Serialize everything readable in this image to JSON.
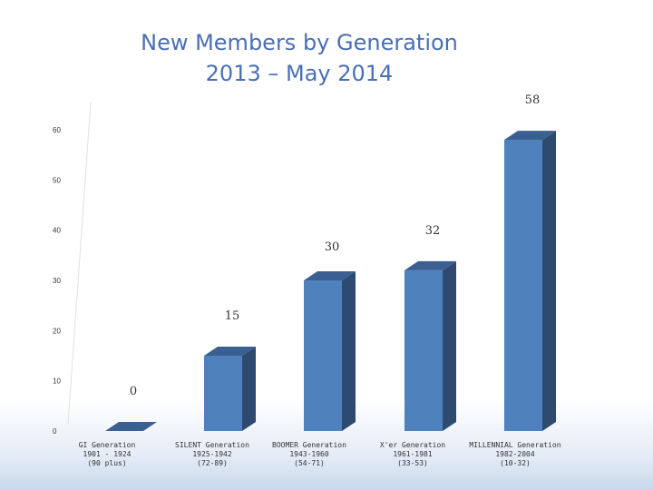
{
  "chart_title": {
    "line1": "New Members by Generation",
    "line2": "2013 – May 2014"
  },
  "chart_data": {
    "type": "bar",
    "categories": [
      [
        "GI Generation",
        "1901 - 1924",
        "(90 plus)"
      ],
      [
        "SILENT Generation",
        "1925-1942",
        "(72-89)"
      ],
      [
        "BOOMER Generation",
        "1943-1960",
        "(54-71)"
      ],
      [
        "X'er Generation",
        "1961-1981",
        "(33-53)"
      ],
      [
        "MILLENNIAL Generation",
        "1982-2004",
        "(10-32)"
      ]
    ],
    "values": [
      0,
      15,
      30,
      32,
      58
    ],
    "ylim": [
      0,
      60
    ],
    "yticks": [
      "0",
      "10",
      "20",
      "30",
      "40",
      "50",
      "60"
    ],
    "data_labels": [
      "0",
      "15",
      "30",
      "32",
      "58"
    ],
    "grid": false,
    "legend": "none",
    "bar_colors": {
      "front": "#4f81bd",
      "side": "#2f4a6f",
      "top": "#3a5f91"
    }
  }
}
